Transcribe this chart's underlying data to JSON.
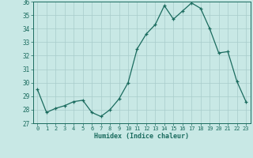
{
  "x": [
    0,
    1,
    2,
    3,
    4,
    5,
    6,
    7,
    8,
    9,
    10,
    11,
    12,
    13,
    14,
    15,
    16,
    17,
    18,
    19,
    20,
    21,
    22,
    23
  ],
  "y": [
    29.5,
    27.8,
    28.1,
    28.3,
    28.6,
    28.7,
    27.8,
    27.5,
    28.0,
    28.8,
    30.0,
    32.5,
    33.6,
    34.3,
    35.7,
    34.7,
    35.3,
    35.9,
    35.5,
    34.0,
    32.2,
    32.3,
    30.1,
    28.6
  ],
  "bg_color": "#c8e8e5",
  "grid_color": "#a8cccb",
  "line_color": "#1a6b5e",
  "marker_color": "#1a6b5e",
  "xlabel": "Humidex (Indice chaleur)",
  "ylim": [
    27,
    36
  ],
  "xlim": [
    -0.5,
    23.5
  ],
  "yticks": [
    27,
    28,
    29,
    30,
    31,
    32,
    33,
    34,
    35,
    36
  ],
  "xticks": [
    0,
    1,
    2,
    3,
    4,
    5,
    6,
    7,
    8,
    9,
    10,
    11,
    12,
    13,
    14,
    15,
    16,
    17,
    18,
    19,
    20,
    21,
    22,
    23
  ],
  "tick_label_color": "#1a6b5e",
  "xlabel_color": "#1a6b5e"
}
